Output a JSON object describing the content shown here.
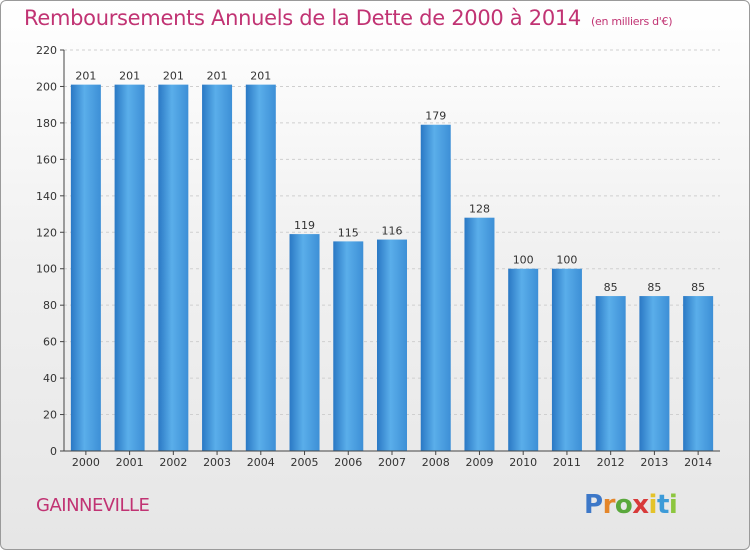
{
  "chart_data": {
    "type": "bar",
    "title": "Remboursements Annuels de la Dette de 2000 à 2014",
    "unit": "(en milliers d'€)",
    "categories": [
      "2000",
      "2001",
      "2002",
      "2003",
      "2004",
      "2005",
      "2006",
      "2007",
      "2008",
      "2009",
      "2010",
      "2011",
      "2012",
      "2013",
      "2014"
    ],
    "values": [
      201,
      201,
      201,
      201,
      201,
      119,
      115,
      116,
      179,
      128,
      100,
      100,
      85,
      85,
      85
    ],
    "ylim": [
      0,
      220
    ],
    "yticks": [
      0,
      20,
      40,
      60,
      80,
      100,
      120,
      140,
      160,
      180,
      200,
      220
    ],
    "grid": true,
    "bar_color": "#3d8fd6",
    "bar_color_light": "#5aaeea",
    "bar_color_dark": "#2a78c4"
  },
  "commune": "GAINNEVILLE",
  "logo": {
    "letters": [
      "P",
      "r",
      "o",
      "x",
      "i",
      "t",
      "i"
    ],
    "colors": [
      "#3d78c8",
      "#e4862a",
      "#5aa83c",
      "#d83a3a",
      "#e4c32a",
      "#3d9bd8",
      "#8dc63f"
    ]
  },
  "colors": {
    "accent": "#c13373",
    "grid": "#cfcfcf",
    "axis": "#444444"
  }
}
